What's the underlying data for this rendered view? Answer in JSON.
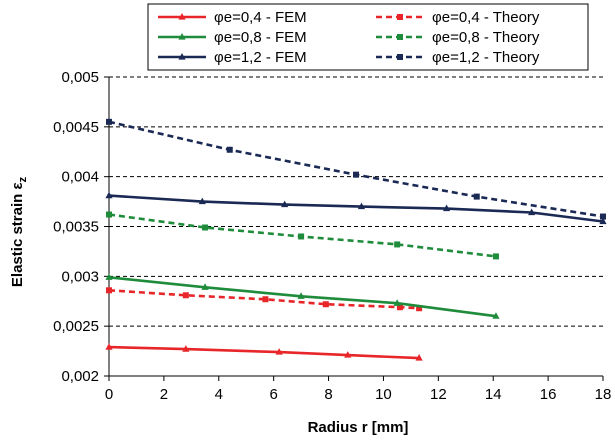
{
  "chart_data": {
    "type": "line",
    "xlabel": "Radius r [mm]",
    "ylabel": "Elastic strain ε",
    "ylabel_sub": "z",
    "xlim": [
      0,
      18
    ],
    "ylim": [
      0.002,
      0.005
    ],
    "x_ticks": [
      0,
      2,
      4,
      6,
      8,
      10,
      12,
      14,
      16,
      18
    ],
    "x_tick_labels": [
      "0",
      "2",
      "4",
      "6",
      "8",
      "10",
      "12",
      "14",
      "16",
      "18"
    ],
    "y_ticks": [
      0.002,
      0.0025,
      0.003,
      0.0035,
      0.004,
      0.0045,
      0.005
    ],
    "y_tick_labels": [
      "0,002",
      "0,0025",
      "0,003",
      "0,0035",
      "0,004",
      "0,0045",
      "0,005"
    ],
    "grid": "horizontal dashed",
    "legend_position": "top",
    "series": [
      {
        "name": "φe=0,4 - FEM",
        "color": "#e8262a",
        "style": "solid",
        "marker": "triangle",
        "x": [
          0,
          2.8,
          6.2,
          8.7,
          11.3
        ],
        "y": [
          0.00229,
          0.00227,
          0.00224,
          0.00221,
          0.00218
        ]
      },
      {
        "name": "φe=0,4 - Theory",
        "color": "#e8262a",
        "style": "dashed",
        "marker": "square",
        "x": [
          0,
          2.8,
          5.7,
          7.9,
          10.6,
          11.3
        ],
        "y": [
          0.00286,
          0.00281,
          0.00277,
          0.00272,
          0.00269,
          0.00268
        ]
      },
      {
        "name": "φe=0,8 - FEM",
        "color": "#1e8c3a",
        "style": "solid",
        "marker": "triangle",
        "x": [
          0,
          3.5,
          7.0,
          10.5,
          14.1
        ],
        "y": [
          0.00299,
          0.00289,
          0.0028,
          0.00273,
          0.0026
        ]
      },
      {
        "name": "φe=0,8 - Theory",
        "color": "#1e8c3a",
        "style": "dashed",
        "marker": "square",
        "x": [
          0,
          3.5,
          7.0,
          10.5,
          14.1
        ],
        "y": [
          0.00362,
          0.00349,
          0.0034,
          0.00332,
          0.0032
        ]
      },
      {
        "name": "φe=1,2 - FEM",
        "color": "#1b2a55",
        "style": "solid",
        "marker": "triangle",
        "x": [
          0,
          3.4,
          6.4,
          9.2,
          12.3,
          15.4,
          18
        ],
        "y": [
          0.00381,
          0.00375,
          0.00372,
          0.0037,
          0.00368,
          0.00364,
          0.00355
        ]
      },
      {
        "name": "φe=1,2 - Theory",
        "color": "#1b2a55",
        "style": "dashed",
        "marker": "square",
        "x": [
          0,
          4.4,
          9.0,
          13.4,
          18
        ],
        "y": [
          0.00455,
          0.00427,
          0.00402,
          0.0038,
          0.0036
        ]
      }
    ]
  }
}
